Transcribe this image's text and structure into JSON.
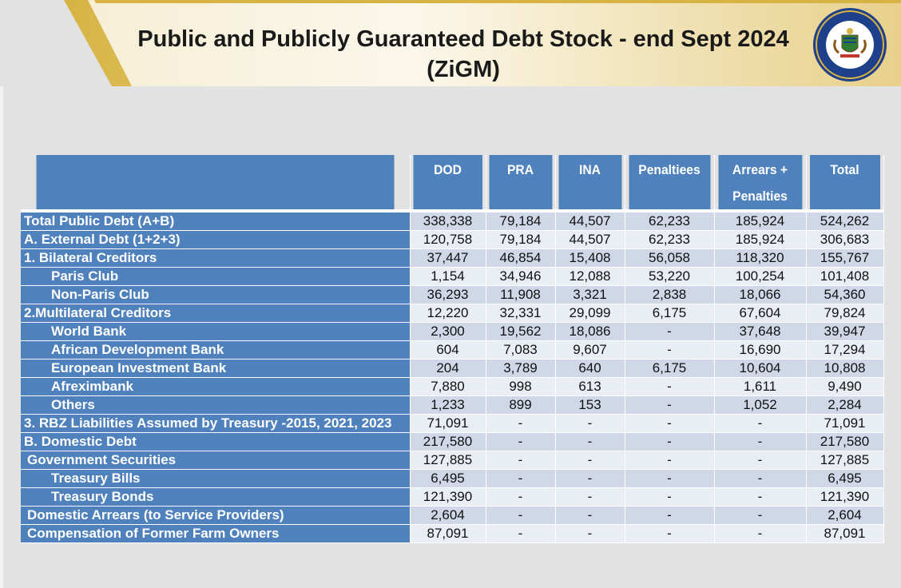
{
  "title": "Public and Publicly Guaranteed Debt Stock - end Sept 2024 (ZiGM)",
  "logo": {
    "icon": "coat-of-arms-seal-icon",
    "ring_text": "MINISTRY OF FINANCE, ECONOMIC DEVELOPMENT AND INVESTMENT PROMOTION"
  },
  "colors": {
    "header_blue": "#4f81bd",
    "row_light": "#e9edf4",
    "row_dark": "#d0d8e8",
    "banner_gold": "#c9a227"
  },
  "table": {
    "headers": [
      "DOD",
      "PRA",
      "INA",
      "Penaltiees",
      "Arrears + Penalties",
      "Total"
    ],
    "rows": [
      {
        "label": "Total Public Debt (A+B)",
        "values": [
          "338,338",
          "79,184",
          "44,507",
          "62,233",
          "185,924",
          "524,262"
        ]
      },
      {
        "label": "A. External Debt (1+2+3)",
        "values": [
          "120,758",
          "79,184",
          "44,507",
          "62,233",
          "185,924",
          "306,683"
        ]
      },
      {
        "label": "1. Bilateral Creditors",
        "values": [
          "37,447",
          "46,854",
          "15,408",
          "56,058",
          "118,320",
          "155,767"
        ]
      },
      {
        "label": "Paris Club",
        "values": [
          "1,154",
          "34,946",
          "12,088",
          "53,220",
          "100,254",
          "101,408"
        ]
      },
      {
        "label": "Non-Paris Club",
        "values": [
          "36,293",
          "11,908",
          "3,321",
          "2,838",
          "18,066",
          "54,360"
        ]
      },
      {
        "label": "2.Multilateral Creditors",
        "values": [
          "12,220",
          "32,331",
          "29,099",
          "6,175",
          "67,604",
          "79,824"
        ]
      },
      {
        "label": "World Bank",
        "values": [
          "2,300",
          "19,562",
          "18,086",
          "-",
          "37,648",
          "39,947"
        ]
      },
      {
        "label": "African Development Bank",
        "values": [
          "604",
          "7,083",
          "9,607",
          "-",
          "16,690",
          "17,294"
        ]
      },
      {
        "label": "European Investment Bank",
        "values": [
          "204",
          "3,789",
          "640",
          "6,175",
          "10,604",
          "10,808"
        ]
      },
      {
        "label": "Afreximbank",
        "values": [
          "7,880",
          "998",
          "613",
          "-",
          "1,611",
          "9,490"
        ]
      },
      {
        "label": "Others",
        "values": [
          "1,233",
          "899",
          "153",
          "-",
          "1,052",
          "2,284"
        ]
      },
      {
        "label": "3. RBZ Liabilities Assumed by Treasury -2015, 2021, 2023",
        "values": [
          "71,091",
          "-",
          "-",
          "-",
          "-",
          "71,091"
        ]
      },
      {
        "label": "B. Domestic Debt",
        "values": [
          "217,580",
          "-",
          "-",
          "-",
          "-",
          "217,580"
        ]
      },
      {
        "label": "Government Securities",
        "values": [
          "127,885",
          "-",
          "-",
          "-",
          "-",
          "127,885"
        ]
      },
      {
        "label": "Treasury Bills",
        "values": [
          "6,495",
          "-",
          "-",
          "-",
          "-",
          "6,495"
        ]
      },
      {
        "label": "Treasury Bonds",
        "values": [
          "121,390",
          "-",
          "-",
          "-",
          "-",
          "121,390"
        ]
      },
      {
        "label": "Domestic Arrears (to Service Providers)",
        "values": [
          "2,604",
          "-",
          "-",
          "-",
          "-",
          "2,604"
        ]
      },
      {
        "label": "Compensation of Former Farm Owners",
        "values": [
          "87,091",
          "-",
          "-",
          "-",
          "-",
          "87,091"
        ]
      }
    ]
  }
}
